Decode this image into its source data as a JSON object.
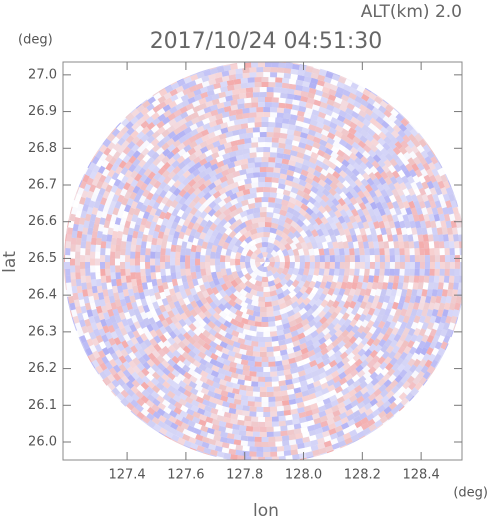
{
  "chart_data": {
    "type": "radar-ppi",
    "title": "2017/10/24 04:51:30",
    "annotation": "ALT(km) 2.0",
    "x_label": "lon",
    "x_unit": "(deg)",
    "y_label": "lat",
    "y_unit": "(deg)",
    "xlim": [
      127.182,
      128.539
    ],
    "ylim": [
      25.951,
      27.035
    ],
    "xticks": [
      127.4,
      127.6,
      127.8,
      {
        "value": 128.0,
        "label": "128.0"
      },
      128.2,
      128.4
    ],
    "yticks": [
      {
        "value": 26.0,
        "label": "26.0"
      },
      26.1,
      26.2,
      26.3,
      26.4,
      26.5,
      26.6,
      26.7,
      26.8,
      26.9,
      {
        "value": 27.0,
        "label": "27.0"
      }
    ]
  }
}
